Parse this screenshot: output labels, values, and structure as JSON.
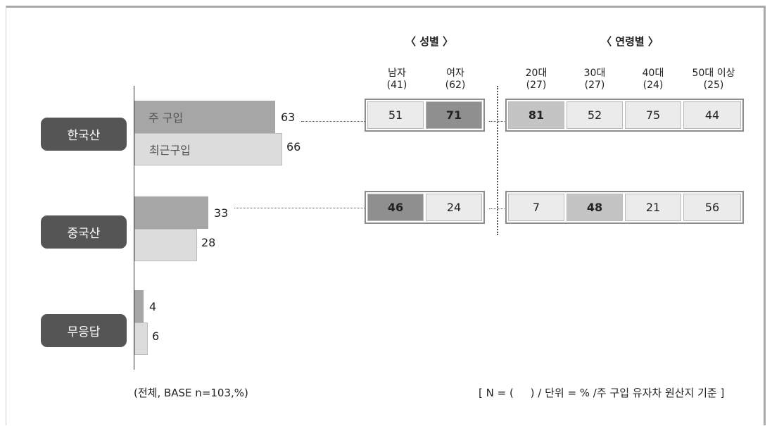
{
  "chart_data": {
    "type": "bar",
    "categories": [
      "한국산",
      "중국산",
      "무응답"
    ],
    "series": [
      {
        "name": "주 구입",
        "values": [
          63,
          33,
          4
        ]
      },
      {
        "name": "최근구입",
        "values": [
          66,
          28,
          6
        ]
      }
    ],
    "breakdown": {
      "gender": {
        "title": "〈 성별 〉",
        "columns": [
          {
            "label": "남자",
            "n": "(41)"
          },
          {
            "label": "여자",
            "n": "(62)"
          }
        ]
      },
      "age": {
        "title": "〈 연령별 〉",
        "columns": [
          {
            "label": "20대",
            "n": "(27)"
          },
          {
            "label": "30대",
            "n": "(27)"
          },
          {
            "label": "40대",
            "n": "(24)"
          },
          {
            "label": "50대 이상",
            "n": "(25)"
          }
        ]
      },
      "rows": [
        {
          "category": "한국산",
          "gender": [
            51,
            71
          ],
          "age": [
            81,
            52,
            75,
            44
          ]
        },
        {
          "category": "중국산",
          "gender": [
            46,
            24
          ],
          "age": [
            7,
            48,
            21,
            56
          ]
        }
      ],
      "highlight": {
        "한국산": {
          "gender": [
            null,
            "dark"
          ],
          "age": [
            "mid",
            null,
            null,
            null
          ]
        },
        "중국산": {
          "gender": [
            "dark",
            null
          ],
          "age": [
            null,
            "mid",
            null,
            null
          ]
        }
      }
    },
    "xlim": [
      0,
      100
    ],
    "colors": {
      "main": "#a6a6a6",
      "recent": "#dcdcdc",
      "label_bg": "#555555"
    }
  },
  "notes": {
    "base": "(전체, BASE n=103,%)",
    "unit": "[ N = (     ) / 단위 = % /주 구입 유자차 원산지 기준 ]"
  }
}
